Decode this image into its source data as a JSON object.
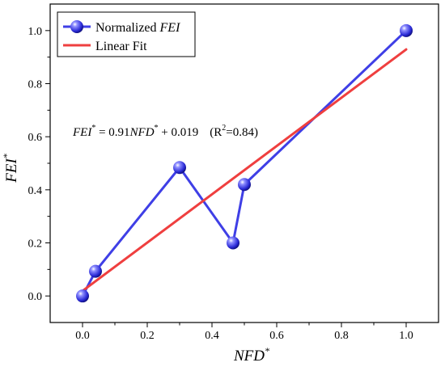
{
  "chart_data": {
    "type": "line",
    "xlabel": "NFD",
    "xlabel_sup": "*",
    "ylabel": "FEI",
    "ylabel_sup": "*",
    "xlim": [
      -0.1,
      1.1
    ],
    "ylim": [
      -0.1,
      1.1
    ],
    "xticks": [
      0.0,
      0.2,
      0.4,
      0.6,
      0.8,
      1.0
    ],
    "yticks": [
      0.0,
      0.2,
      0.4,
      0.6,
      0.8,
      1.0
    ],
    "xtick_labels": [
      "0.0",
      "0.2",
      "0.4",
      "0.6",
      "0.8",
      "1.0"
    ],
    "ytick_labels": [
      "0.0",
      "0.2",
      "0.4",
      "0.6",
      "0.8",
      "1.0"
    ],
    "legend_position": "top-left",
    "series": [
      {
        "name": "Normalized FEI",
        "legend_prefix": "Normalized ",
        "legend_italic": "FEI",
        "color": "#3f3fe6",
        "x": [
          0.0,
          0.04,
          0.3,
          0.465,
          0.5,
          1.0
        ],
        "y": [
          0.0,
          0.093,
          0.484,
          0.2,
          0.42,
          1.0
        ]
      },
      {
        "name": "Linear Fit",
        "color": "#ef3f3f",
        "x": [
          0.0,
          1.0
        ],
        "y": [
          0.019,
          0.929
        ]
      }
    ],
    "annotation": {
      "fei": "FEI",
      "eq": " = 0.91",
      "nfd": "NFD",
      "tail": " + 0.019",
      "r2_open": "(R",
      "r2_close": "=0.84)",
      "star": "*",
      "two": "2"
    }
  }
}
